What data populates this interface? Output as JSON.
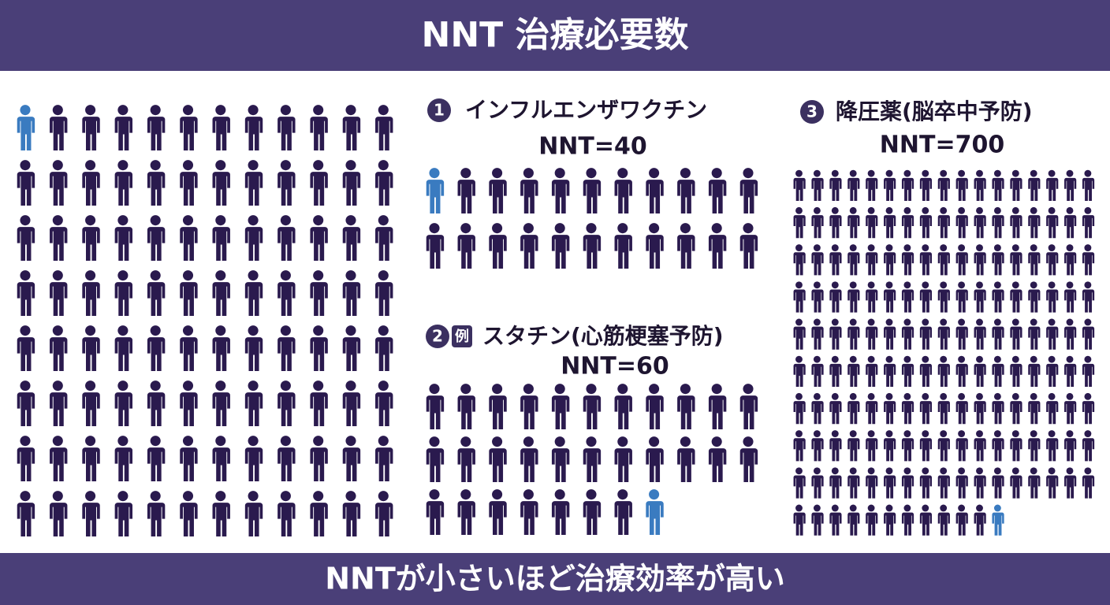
{
  "header": {
    "title": "NNT 治療必要数"
  },
  "panels": [
    {
      "count": 96,
      "highlight": 0
    },
    {
      "badge": "1",
      "label": "インフルエンザワクチン",
      "nnt": "NNT=40",
      "count": 22,
      "highlight": 0
    },
    {
      "badge": "2",
      "mark": "例",
      "label": "スタチン(心筋梗塞予防)",
      "nnt": "NNT=60",
      "count": 30,
      "highlight": 29
    },
    {
      "badge": "3",
      "label": "降圧薬(脳卒中予防)",
      "nnt": "NNT=700",
      "count": 165,
      "highlight": 164
    }
  ],
  "footer": {
    "text": "NNTが小さいほど治療効率が高い"
  }
}
